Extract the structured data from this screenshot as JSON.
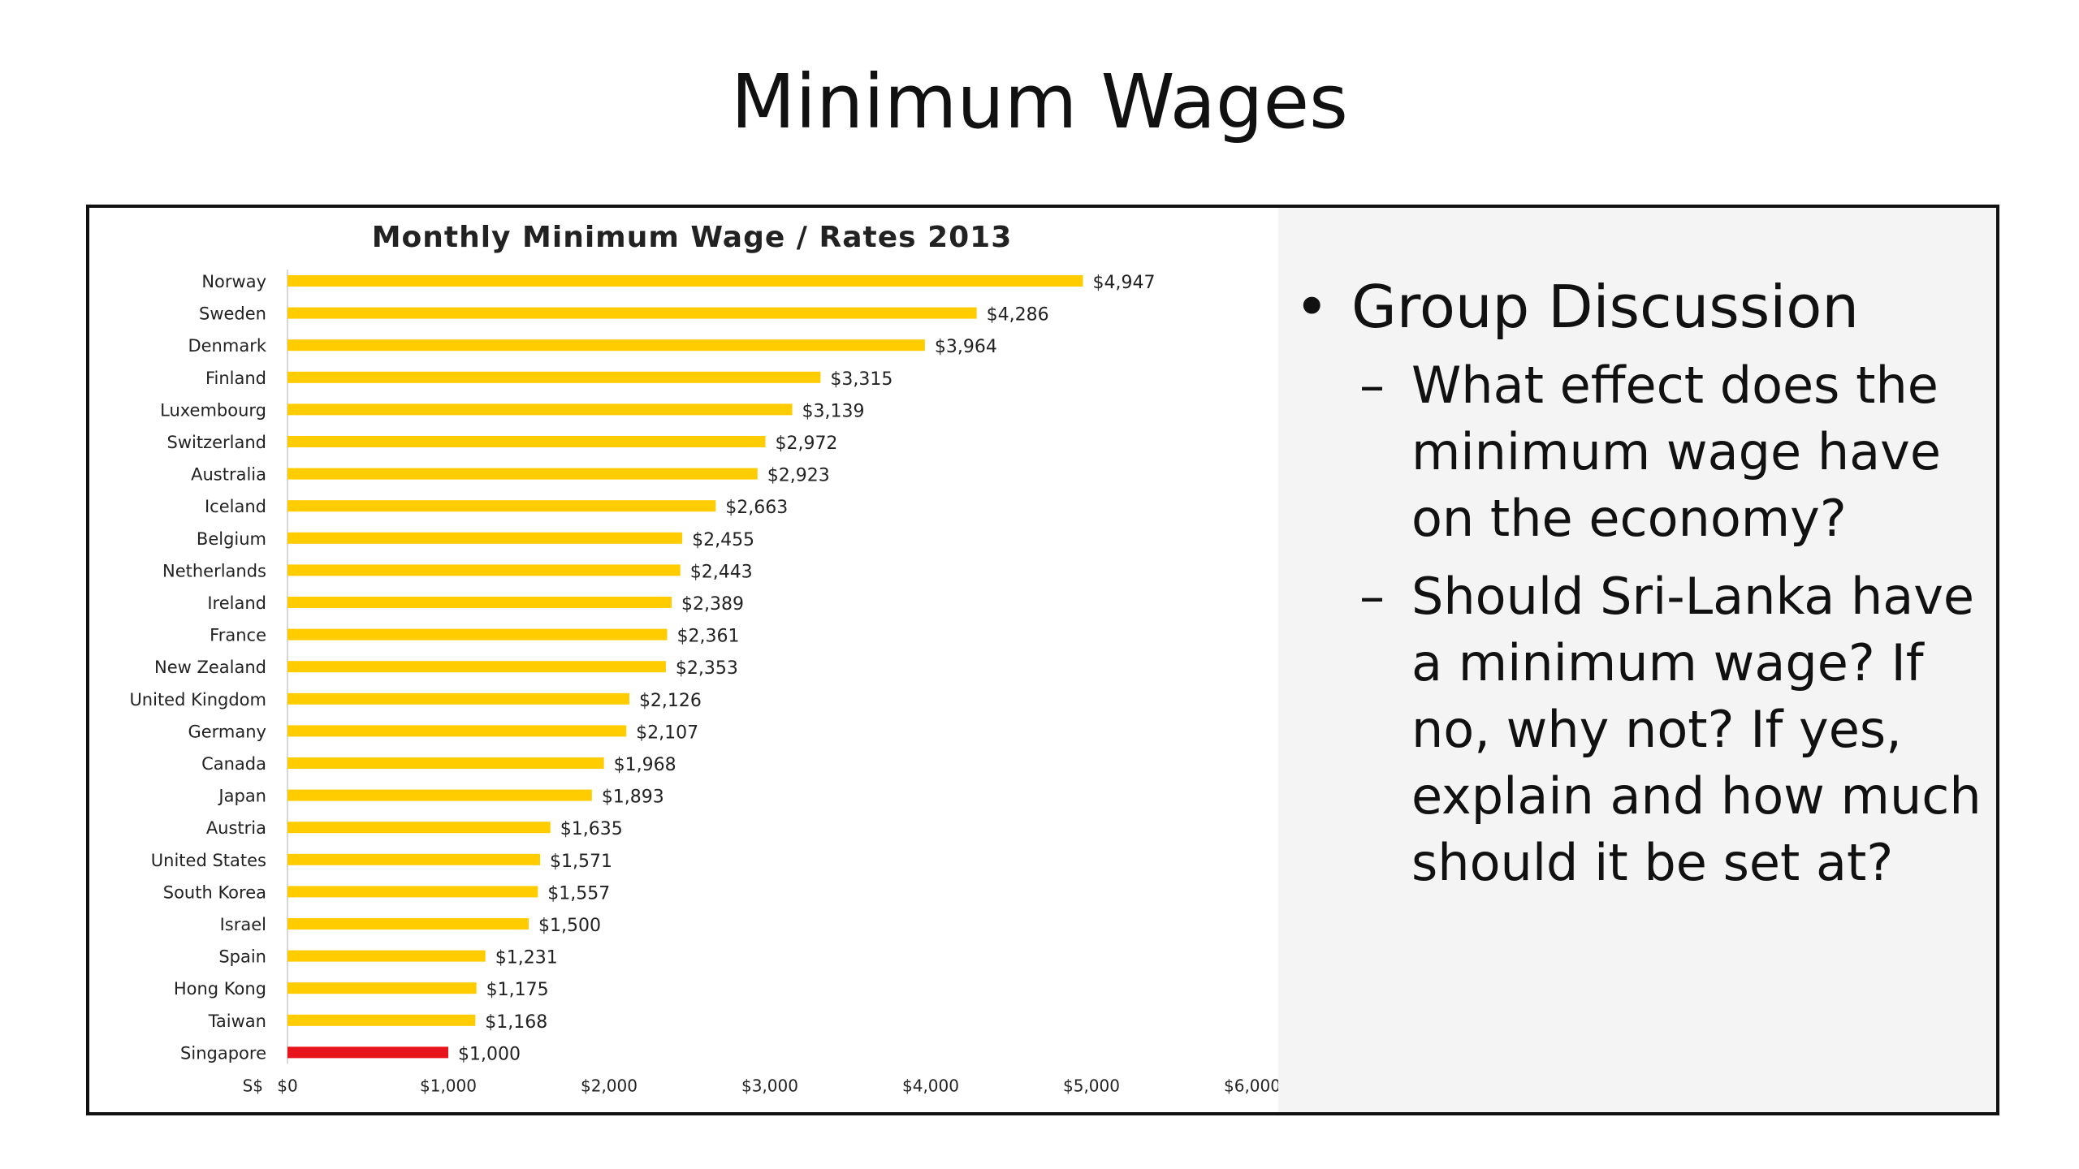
{
  "slide": {
    "title": "Minimum Wages"
  },
  "discussion": {
    "bullet_symbol": "•",
    "heading": "Group Discussion",
    "dash_symbol": "–",
    "questions": [
      "What effect does the minimum wage have on the economy?",
      "Should Sri-Lanka have a minimum wage? If no, why not? If yes, explain and how much should it be set at?"
    ]
  },
  "chart_data": {
    "type": "bar",
    "orientation": "horizontal",
    "title": "Monthly Minimum Wage / Rates 2013",
    "currency_label": "S$",
    "categories": [
      "Norway",
      "Sweden",
      "Denmark",
      "Finland",
      "Luxembourg",
      "Switzerland",
      "Australia",
      "Iceland",
      "Belgium",
      "Netherlands",
      "Ireland",
      "France",
      "New Zealand",
      "United Kingdom",
      "Germany",
      "Canada",
      "Japan",
      "Austria",
      "United States",
      "South Korea",
      "Israel",
      "Spain",
      "Hong Kong",
      "Taiwan",
      "Singapore"
    ],
    "values": [
      4947,
      4286,
      3964,
      3315,
      3139,
      2972,
      2923,
      2663,
      2455,
      2443,
      2389,
      2361,
      2353,
      2126,
      2107,
      1968,
      1893,
      1635,
      1571,
      1557,
      1500,
      1231,
      1175,
      1168,
      1000
    ],
    "value_labels": [
      "$4,947",
      "$4,286",
      "$3,964",
      "$3,315",
      "$3,139",
      "$2,972",
      "$2,923",
      "$2,663",
      "$2,455",
      "$2,443",
      "$2,389",
      "$2,361",
      "$2,353",
      "$2,126",
      "$2,107",
      "$1,968",
      "$1,893",
      "$1,635",
      "$1,571",
      "$1,557",
      "$1,500",
      "$1,231",
      "$1,175",
      "$1,168",
      "$1,000"
    ],
    "highlight_category": "Singapore",
    "xlim": [
      0,
      6000
    ],
    "xticks": [
      0,
      1000,
      2000,
      3000,
      4000,
      5000,
      6000
    ],
    "xtick_labels": [
      "$0",
      "$1,000",
      "$2,000",
      "$3,000",
      "$4,000",
      "$5,000",
      "$6,000"
    ],
    "grid": false,
    "colors": {
      "bar": "#FFCC00",
      "highlight": "#E8141B",
      "text": "#222222"
    }
  }
}
